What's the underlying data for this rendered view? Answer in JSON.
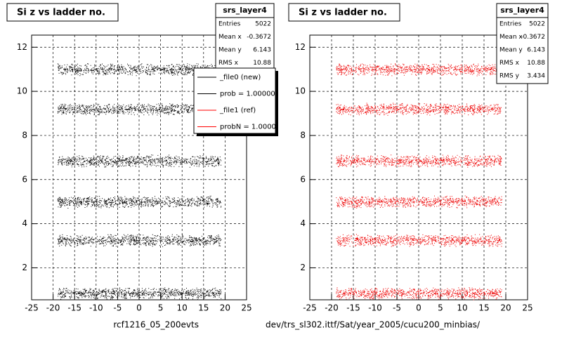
{
  "chart_data": [
    {
      "type": "scatter",
      "title": "Si z vs ladder no.",
      "xlabel": "rcf1216_05_200evts",
      "xlim": [
        -25,
        25
      ],
      "ylim": [
        0.55,
        12.55
      ],
      "xticks": [
        -25,
        -20,
        -15,
        -10,
        -5,
        0,
        5,
        10,
        15,
        20,
        25
      ],
      "yticks": [
        2,
        4,
        6,
        8,
        10,
        12
      ],
      "grid": true,
      "color": "#000000",
      "y": [
        11,
        9.2,
        6.85,
        5,
        3.25,
        0.85
      ],
      "x_extent": [
        -19,
        19
      ],
      "stats": {
        "name": "srs_layer4",
        "rows": [
          {
            "label": "Entries",
            "value": 5022
          },
          {
            "label": "Mean x",
            "value": -0.3672
          },
          {
            "label": "Mean y",
            "value": 6.143
          },
          {
            "label": "RMS x",
            "value": 10.88
          }
        ]
      },
      "legend": [
        {
          "label": "_file0 (new)",
          "color": "#000000"
        },
        {
          "label": "prob = 1.000000",
          "color": "#000000"
        },
        {
          "label": "_file1 (ref)",
          "color": "#ff0000"
        },
        {
          "label": "probN = 1.00000",
          "color": "#ff0000"
        }
      ]
    },
    {
      "type": "scatter",
      "title": "Si z vs ladder no.",
      "xlabel": "dev/trs_sl302.ittf/Sat/year_2005/cucu200_minbias/",
      "xlim": [
        -25,
        25
      ],
      "ylim": [
        0.55,
        12.55
      ],
      "xticks": [
        -25,
        -20,
        -15,
        -10,
        -5,
        0,
        5,
        10,
        15,
        20,
        25
      ],
      "yticks": [
        2,
        4,
        6,
        8,
        10,
        12
      ],
      "grid": true,
      "color": "#ee0000",
      "y": [
        11,
        9.2,
        6.85,
        5,
        3.25,
        0.85
      ],
      "x_extent": [
        -19,
        19
      ],
      "stats": {
        "name": "srs_layer4",
        "rows": [
          {
            "label": "Entries",
            "value": 5022
          },
          {
            "label": "Mean x",
            "value": -0.3672
          },
          {
            "label": "Mean y",
            "value": 6.143
          },
          {
            "label": "RMS x",
            "value": 10.88
          },
          {
            "label": "RMS y",
            "value": 3.434
          }
        ]
      }
    }
  ]
}
